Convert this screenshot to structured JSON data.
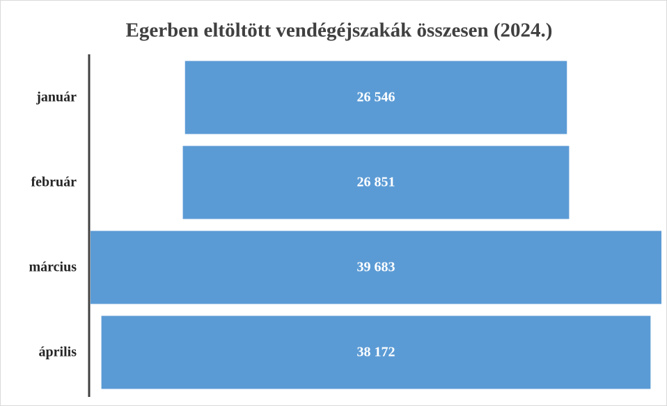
{
  "chart_data": {
    "type": "funnel",
    "title": "Egerben eltöltött vendégéjszakák összesen (2024.)",
    "categories": [
      "január",
      "február",
      "március",
      "április"
    ],
    "values": [
      26546,
      26851,
      39683,
      38172
    ],
    "value_labels": [
      "26 546",
      "26 851",
      "39 683",
      "38 172"
    ],
    "color": "#5b9bd5"
  }
}
